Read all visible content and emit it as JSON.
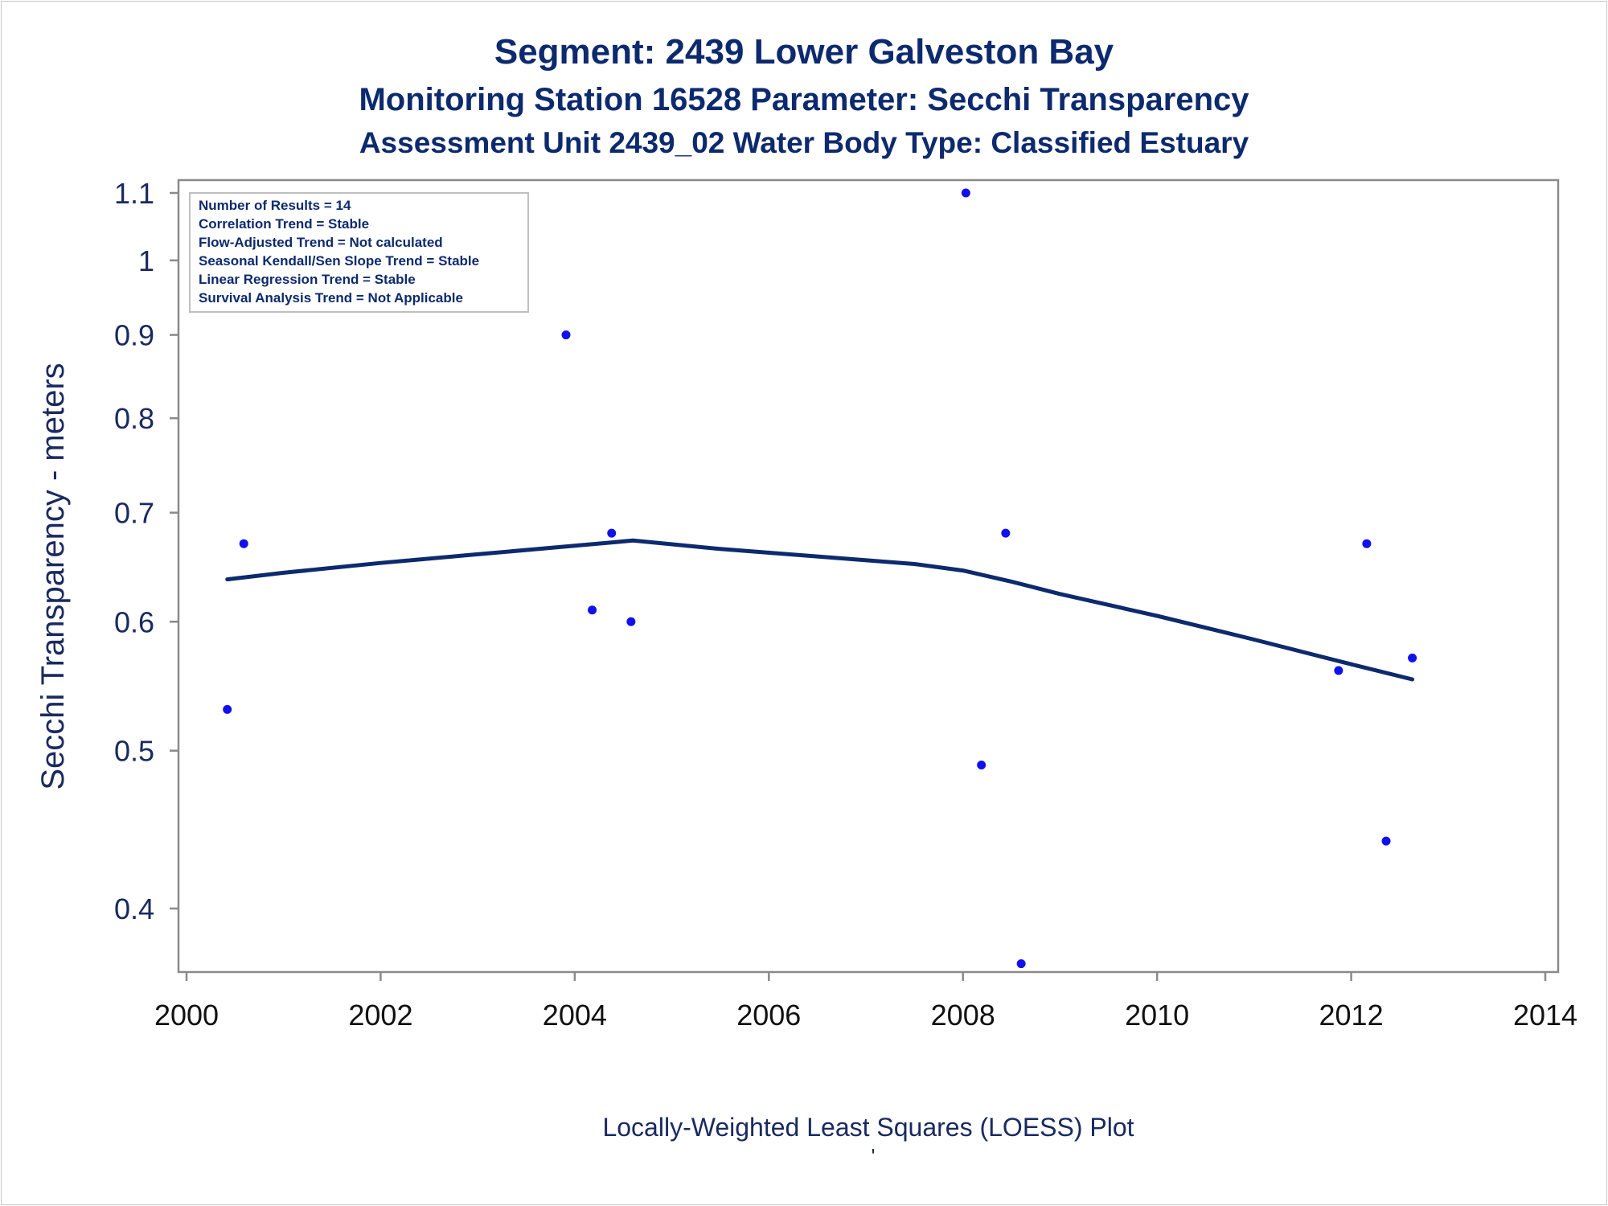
{
  "chart_data": {
    "type": "scatter",
    "title": "Segment: 2439  Lower Galveston Bay",
    "subtitle": "Monitoring Station 16528 Parameter: Secchi Transparency",
    "subtitle2": "Assessment Unit 2439_02   Water Body Type: Classified Estuary",
    "xlabel": "",
    "ylabel": "Secchi Transparency - meters",
    "footnote": "Locally-Weighted Least Squares (LOESS) Plot",
    "footnote_mark": "'",
    "yscale": "log",
    "xlim": [
      2000,
      2014
    ],
    "ylim": [
      0.37,
      1.11
    ],
    "x_ticks": [
      2000,
      2002,
      2004,
      2006,
      2008,
      2010,
      2012,
      2014
    ],
    "x_tick_labels": [
      "2000",
      "2002",
      "2004",
      "2006",
      "2008",
      "2010",
      "2012",
      "2014"
    ],
    "y_ticks": [
      0.4,
      0.5,
      0.6,
      0.7,
      0.8,
      0.9,
      1.0,
      1.1
    ],
    "y_tick_labels": [
      "0.4",
      "0.5",
      "0.6",
      "0.7",
      "0.8",
      "0.9",
      "1",
      "1.1"
    ],
    "grid": false,
    "stats_box": {
      "placement": "top-left",
      "lines": [
        "Number of Results = 14",
        "Correlation Trend = Stable",
        "Flow-Adjusted Trend = Not calculated",
        "Seasonal Kendall/Sen Slope Trend = Stable",
        "Linear Regression Trend = Stable",
        "Survival Analysis Trend = Not Applicable"
      ]
    },
    "series": [
      {
        "type": "scatter",
        "color": "#1010f0",
        "points": [
          {
            "x": 2000.42,
            "y": 0.53
          },
          {
            "x": 2000.59,
            "y": 0.67
          },
          {
            "x": 2003.91,
            "y": 0.9
          },
          {
            "x": 2004.18,
            "y": 0.61
          },
          {
            "x": 2004.38,
            "y": 0.68
          },
          {
            "x": 2004.58,
            "y": 0.6
          },
          {
            "x": 2008.03,
            "y": 1.1
          },
          {
            "x": 2008.19,
            "y": 0.49
          },
          {
            "x": 2008.44,
            "y": 0.68
          },
          {
            "x": 2008.6,
            "y": 0.37
          },
          {
            "x": 2011.87,
            "y": 0.56
          },
          {
            "x": 2012.16,
            "y": 0.67
          },
          {
            "x": 2012.36,
            "y": 0.44
          },
          {
            "x": 2012.63,
            "y": 0.57
          }
        ]
      },
      {
        "type": "line",
        "color": "#0d2a6e",
        "points": [
          {
            "x": 2000.42,
            "y": 0.637
          },
          {
            "x": 2001.0,
            "y": 0.643
          },
          {
            "x": 2002.0,
            "y": 0.652
          },
          {
            "x": 2003.0,
            "y": 0.66
          },
          {
            "x": 2004.0,
            "y": 0.668
          },
          {
            "x": 2004.6,
            "y": 0.673
          },
          {
            "x": 2005.5,
            "y": 0.665
          },
          {
            "x": 2006.5,
            "y": 0.658
          },
          {
            "x": 2007.5,
            "y": 0.651
          },
          {
            "x": 2008.0,
            "y": 0.645
          },
          {
            "x": 2008.5,
            "y": 0.635
          },
          {
            "x": 2009.0,
            "y": 0.624
          },
          {
            "x": 2010.0,
            "y": 0.605
          },
          {
            "x": 2011.0,
            "y": 0.585
          },
          {
            "x": 2012.0,
            "y": 0.565
          },
          {
            "x": 2012.63,
            "y": 0.553
          }
        ]
      }
    ]
  }
}
